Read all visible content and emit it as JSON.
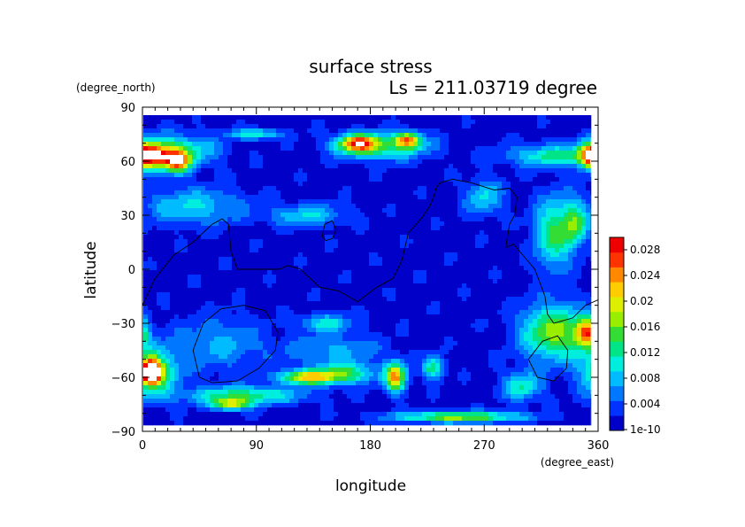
{
  "chart_data": {
    "type": "heatmap",
    "title": "surface stress",
    "subtitle": "Ls = 211.03719 degree",
    "xlabel": "longitude",
    "ylabel": "latitude",
    "x_unit": "(degree_east)",
    "y_unit": "(degree_north)",
    "xlim": [
      0,
      360
    ],
    "ylim": [
      -90,
      90
    ],
    "xticks": [
      "0",
      "90",
      "180",
      "270",
      "360"
    ],
    "yticks": [
      "90",
      "60",
      "30",
      "0",
      "−30",
      "−60",
      "−90"
    ],
    "colorbar": {
      "min": 0,
      "max": 0.03,
      "ticks": [
        "1e-10",
        "0.004",
        "0.008",
        "0.012",
        "0.016",
        "0.02",
        "0.024",
        "0.028"
      ],
      "colors": [
        "#0000c8",
        "#0033ff",
        "#0077ff",
        "#00bbff",
        "#00eedd",
        "#00e488",
        "#33dd33",
        "#99ee00",
        "#ddee00",
        "#ffcc00",
        "#ff8800",
        "#ff3300",
        "#ee0000"
      ]
    },
    "background_level": 0.0015,
    "hotspots": [
      {
        "lon": 7,
        "lat": -57,
        "amp": 0.031,
        "rlon": 7,
        "rlat": 6
      },
      {
        "lon": 7,
        "lat": -57,
        "amp": 0.015,
        "rlon": 20,
        "rlat": 13
      },
      {
        "lon": 355,
        "lat": 63,
        "amp": 0.024,
        "rlon": 10,
        "rlat": 7
      },
      {
        "lon": 325,
        "lat": 63,
        "amp": 0.011,
        "rlon": 35,
        "rlat": 6
      },
      {
        "lon": 10,
        "lat": 63,
        "amp": 0.022,
        "rlon": 12,
        "rlat": 7
      },
      {
        "lon": 28,
        "lat": 60,
        "amp": 0.022,
        "rlon": 10,
        "rlat": 6
      },
      {
        "lon": 30,
        "lat": 66,
        "amp": 0.01,
        "rlon": 30,
        "rlat": 9
      },
      {
        "lon": 90,
        "lat": 75,
        "amp": 0.01,
        "rlon": 20,
        "rlat": 3
      },
      {
        "lon": 170,
        "lat": 70,
        "amp": 0.02,
        "rlon": 15,
        "rlat": 5
      },
      {
        "lon": 210,
        "lat": 72,
        "amp": 0.019,
        "rlon": 10,
        "rlat": 4
      },
      {
        "lon": 190,
        "lat": 68,
        "amp": 0.012,
        "rlon": 35,
        "rlat": 7
      },
      {
        "lon": 40,
        "lat": 35,
        "amp": 0.008,
        "rlon": 40,
        "rlat": 10
      },
      {
        "lon": 130,
        "lat": 30,
        "amp": 0.008,
        "rlon": 30,
        "rlat": 6
      },
      {
        "lon": 270,
        "lat": 40,
        "amp": 0.008,
        "rlon": 15,
        "rlat": 10
      },
      {
        "lon": 325,
        "lat": 20,
        "amp": 0.012,
        "rlon": 15,
        "rlat": 20
      },
      {
        "lon": 342,
        "lat": 25,
        "amp": 0.012,
        "rlon": 10,
        "rlat": 12
      },
      {
        "lon": 325,
        "lat": -35,
        "amp": 0.016,
        "rlon": 25,
        "rlat": 15
      },
      {
        "lon": 352,
        "lat": -35,
        "amp": 0.021,
        "rlon": 10,
        "rlat": 8
      },
      {
        "lon": 130,
        "lat": -60,
        "amp": 0.018,
        "rlon": 22,
        "rlat": 4
      },
      {
        "lon": 160,
        "lat": -58,
        "amp": 0.012,
        "rlon": 25,
        "rlat": 6
      },
      {
        "lon": 80,
        "lat": -70,
        "amp": 0.012,
        "rlon": 45,
        "rlat": 5
      },
      {
        "lon": 70,
        "lat": -75,
        "amp": 0.016,
        "rlon": 15,
        "rlat": 3
      },
      {
        "lon": 200,
        "lat": -60,
        "amp": 0.022,
        "rlon": 8,
        "rlat": 8
      },
      {
        "lon": 230,
        "lat": -55,
        "amp": 0.013,
        "rlon": 8,
        "rlat": 6
      },
      {
        "lon": 250,
        "lat": -82,
        "amp": 0.016,
        "rlon": 50,
        "rlat": 3
      },
      {
        "lon": 145,
        "lat": -30,
        "amp": 0.009,
        "rlon": 20,
        "rlat": 5
      },
      {
        "lon": 300,
        "lat": -65,
        "amp": 0.01,
        "rlon": 15,
        "rlat": 8
      },
      {
        "lon": 60,
        "lat": -42,
        "amp": 0.006,
        "rlon": 35,
        "rlat": 15
      },
      {
        "lon": 150,
        "lat": -45,
        "amp": 0.006,
        "rlon": 40,
        "rlat": 8
      }
    ],
    "coastlines": [
      [
        [
          0,
          -20
        ],
        [
          10,
          -5
        ],
        [
          25,
          8
        ],
        [
          40,
          15
        ],
        [
          55,
          25
        ],
        [
          63,
          28
        ],
        [
          68,
          25
        ],
        [
          70,
          10
        ],
        [
          75,
          0
        ],
        [
          90,
          0
        ],
        [
          108,
          0
        ],
        [
          115,
          2
        ],
        [
          125,
          0
        ],
        [
          140,
          -10
        ],
        [
          155,
          -12
        ],
        [
          170,
          -18
        ],
        [
          185,
          -10
        ],
        [
          198,
          -5
        ],
        [
          205,
          5
        ],
        [
          210,
          20
        ],
        [
          220,
          28
        ],
        [
          227,
          35
        ],
        [
          230,
          40
        ],
        [
          232,
          45
        ],
        [
          235,
          48
        ],
        [
          245,
          50
        ],
        [
          260,
          48
        ],
        [
          278,
          44
        ],
        [
          290,
          45
        ],
        [
          296,
          40
        ],
        [
          294,
          30
        ],
        [
          290,
          25
        ],
        [
          287,
          12
        ],
        [
          293,
          14
        ],
        [
          310,
          0
        ],
        [
          318,
          -15
        ],
        [
          320,
          -25
        ],
        [
          325,
          -30
        ],
        [
          340,
          -27
        ],
        [
          350,
          -20
        ],
        [
          360,
          -17
        ]
      ],
      [
        [
          142,
          18
        ],
        [
          144,
          25
        ],
        [
          150,
          27
        ],
        [
          153,
          22
        ],
        [
          150,
          17
        ],
        [
          145,
          16
        ],
        [
          142,
          18
        ]
      ],
      [
        [
          45,
          -60
        ],
        [
          55,
          -63
        ],
        [
          75,
          -62
        ],
        [
          92,
          -55
        ],
        [
          105,
          -45
        ],
        [
          107,
          -35
        ],
        [
          97,
          -23
        ],
        [
          80,
          -20
        ],
        [
          62,
          -22
        ],
        [
          48,
          -30
        ],
        [
          40,
          -45
        ],
        [
          45,
          -60
        ]
      ],
      [
        [
          305,
          -50
        ],
        [
          312,
          -60
        ],
        [
          325,
          -62
        ],
        [
          335,
          -55
        ],
        [
          336,
          -45
        ],
        [
          328,
          -37
        ],
        [
          316,
          -40
        ],
        [
          305,
          -50
        ]
      ]
    ]
  }
}
